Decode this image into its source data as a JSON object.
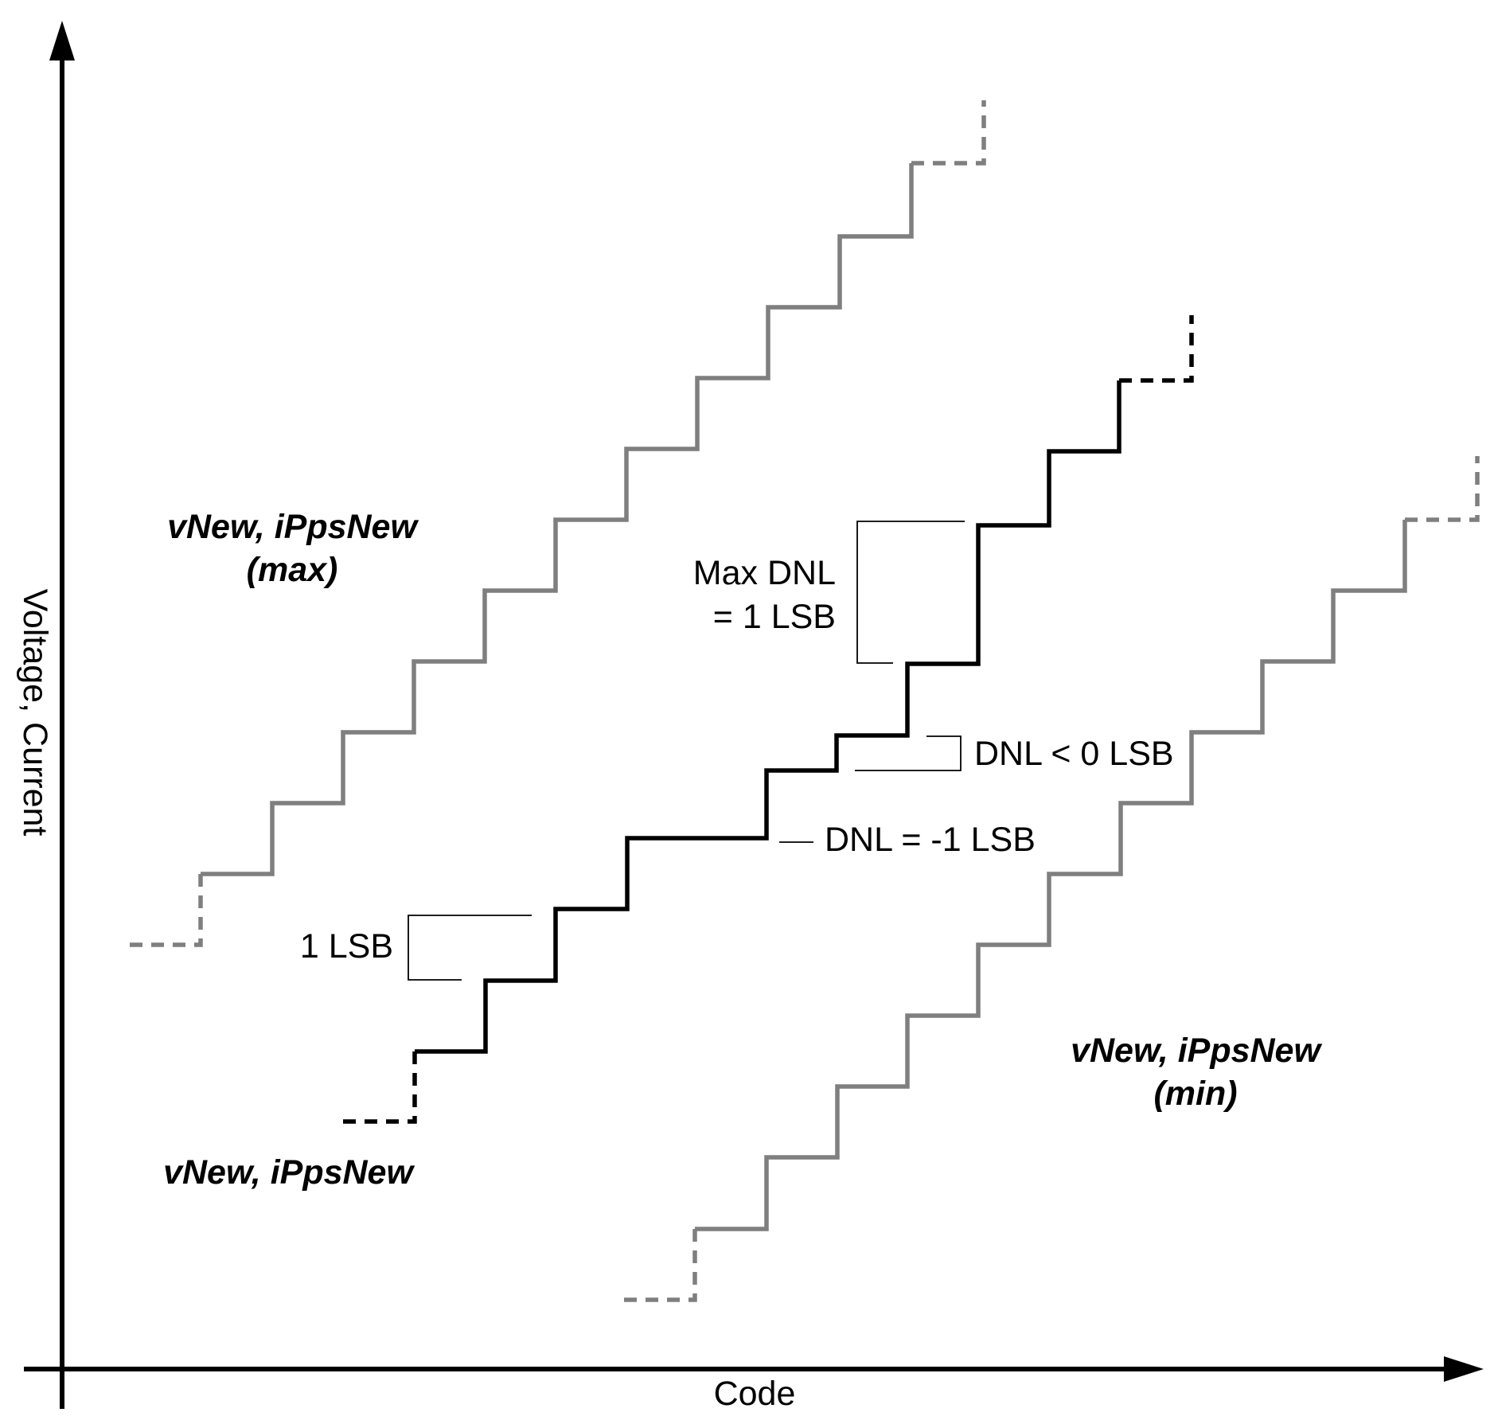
{
  "axes": {
    "x_label": "Code",
    "y_label": "Voltage, Current"
  },
  "series": {
    "max": {
      "line1": "vNew, iPpsNew",
      "line2": "(max)",
      "color": "#7f7f7f"
    },
    "nominal": {
      "line1": "vNew, iPpsNew",
      "color": "#000000"
    },
    "min": {
      "line1": "vNew, iPpsNew",
      "line2": "(min)",
      "color": "#7f7f7f"
    }
  },
  "annotations": {
    "max_dnl_line1": "Max DNL",
    "max_dnl_line2": "= 1 LSB",
    "dnl_lt_zero": "DNL < 0 LSB",
    "dnl_minus_one": "DNL = -1 LSB",
    "one_lsb": "1 LSB"
  }
}
